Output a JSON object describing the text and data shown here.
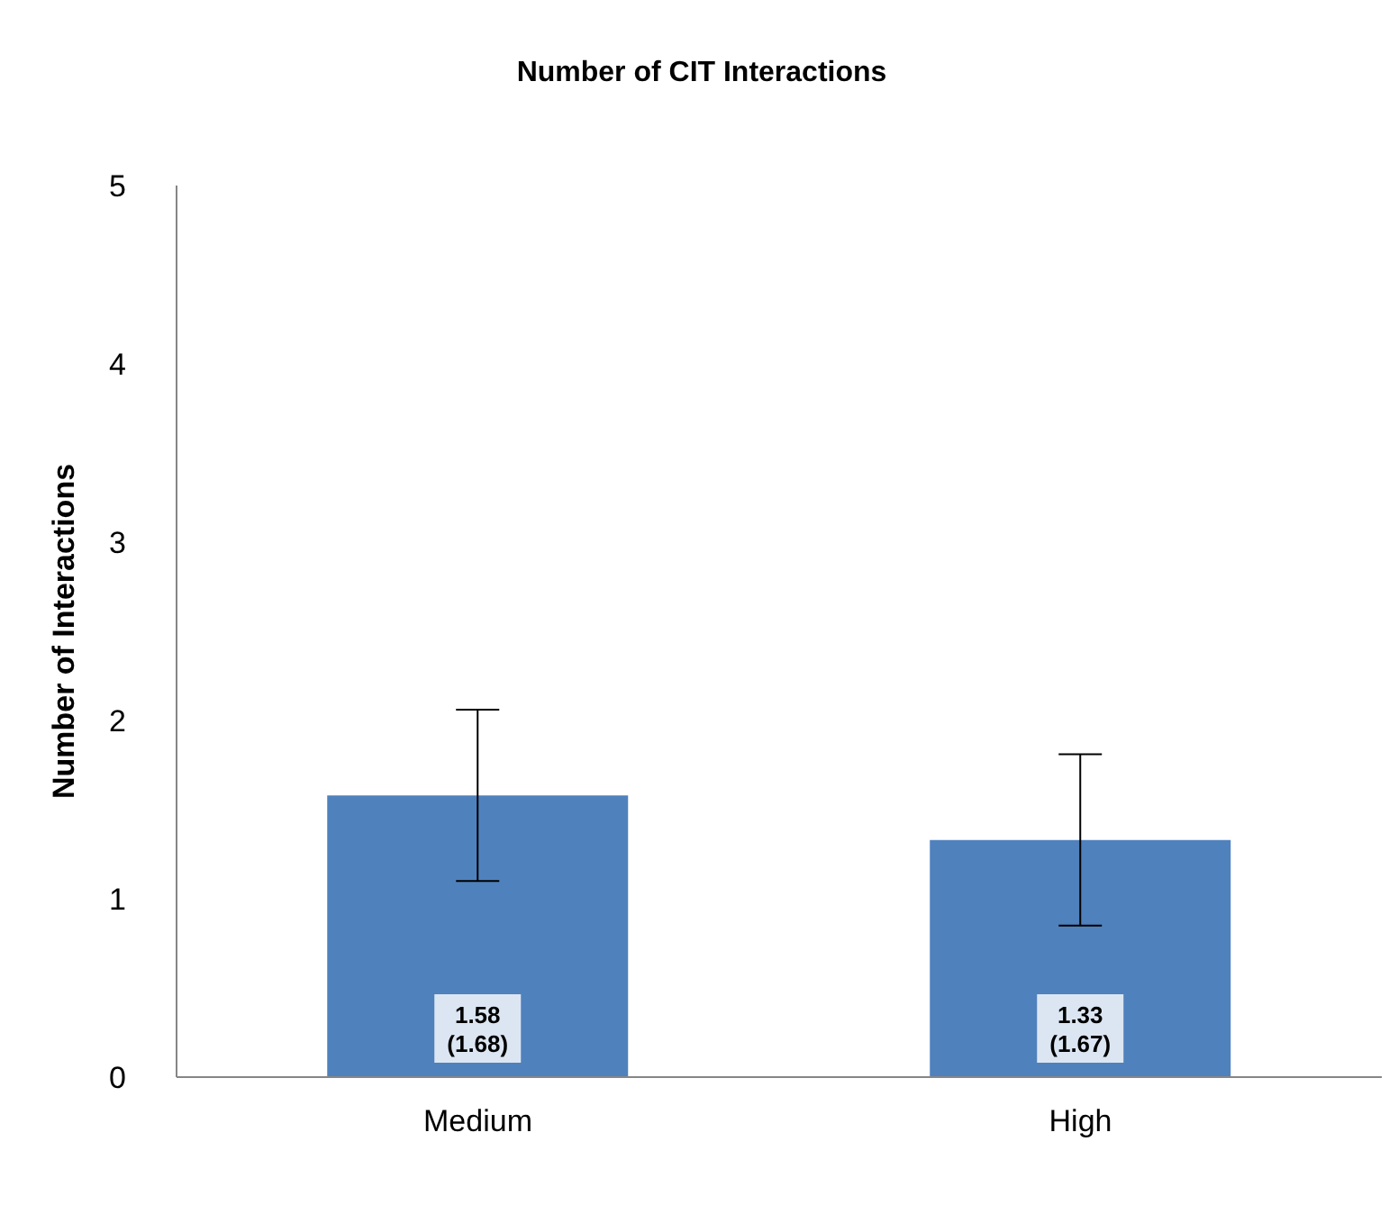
{
  "chart_data": {
    "type": "bar",
    "title": "Number of CIT Interactions",
    "ylabel": "Number of Interactions",
    "categories": [
      "Medium",
      "High"
    ],
    "values": [
      1.58,
      1.33
    ],
    "errors": [
      0.48,
      0.48
    ],
    "color": "#4f81bd",
    "value_labels": [
      "1.58\n(1.68)",
      "1.33\n(1.67)"
    ],
    "ylim": [
      0,
      5
    ],
    "yticks": [
      0,
      1,
      2,
      3,
      4,
      5
    ],
    "grid": false,
    "legend": false
  }
}
